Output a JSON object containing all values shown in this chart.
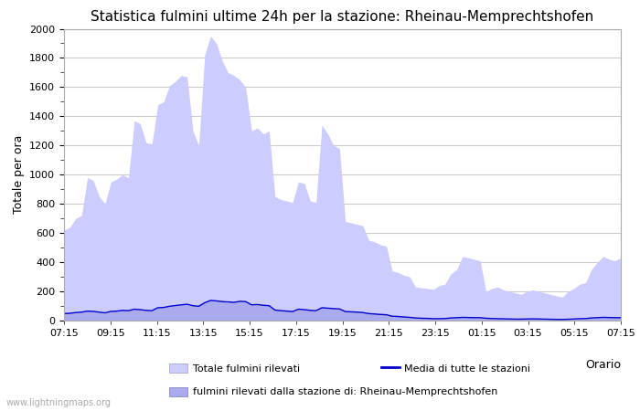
{
  "title": "Statistica fulmini ultime 24h per la stazione: Rheinau-Memprechtshofen",
  "ylabel": "Totale per ora",
  "xlabel": "Orario",
  "watermark": "www.lightningmaps.org",
  "xtick_labels": [
    "07:15",
    "09:15",
    "11:15",
    "13:15",
    "15:15",
    "17:15",
    "19:15",
    "21:15",
    "23:15",
    "01:15",
    "03:15",
    "05:15",
    "07:15"
  ],
  "ylim": [
    0,
    2000
  ],
  "yticks": [
    0,
    200,
    400,
    600,
    800,
    1000,
    1200,
    1400,
    1600,
    1800,
    2000
  ],
  "total_fill_color": "#ccccff",
  "station_fill_color": "#aaaaee",
  "mean_line_color": "#0000cc",
  "background_color": "#ffffff",
  "grid_color": "#cccccc",
  "total_values": [
    620,
    640,
    700,
    720,
    980,
    960,
    850,
    800,
    950,
    970,
    1000,
    980,
    1370,
    1350,
    1220,
    1210,
    1480,
    1500,
    1610,
    1640,
    1680,
    1670,
    1300,
    1200,
    1820,
    1950,
    1900,
    1780,
    1700,
    1680,
    1650,
    1600,
    1300,
    1320,
    1280,
    1300,
    850,
    830,
    820,
    810,
    950,
    940,
    820,
    810,
    1340,
    1280,
    1200,
    1180,
    680,
    670,
    660,
    650,
    550,
    540,
    520,
    510,
    340,
    330,
    310,
    300,
    230,
    225,
    220,
    215,
    240,
    250,
    320,
    350,
    440,
    430,
    420,
    410,
    200,
    220,
    230,
    210,
    200,
    190,
    180,
    200,
    210,
    200,
    190,
    180,
    170,
    160,
    200,
    220,
    250,
    260,
    350,
    400,
    440,
    420,
    410,
    430
  ],
  "station_values": [
    50,
    52,
    58,
    60,
    68,
    65,
    60,
    55,
    65,
    68,
    72,
    70,
    80,
    78,
    72,
    70,
    90,
    92,
    100,
    105,
    110,
    115,
    105,
    100,
    125,
    140,
    138,
    132,
    130,
    128,
    135,
    132,
    110,
    112,
    108,
    105,
    75,
    70,
    68,
    65,
    80,
    78,
    72,
    70,
    90,
    88,
    85,
    82,
    65,
    62,
    60,
    58,
    50,
    48,
    45,
    42,
    32,
    30,
    28,
    25,
    20,
    18,
    17,
    15,
    15,
    16,
    20,
    22,
    25,
    24,
    23,
    22,
    18,
    16,
    15,
    14,
    13,
    12,
    12,
    13,
    14,
    13,
    12,
    11,
    10,
    10,
    11,
    13,
    15,
    16,
    20,
    22,
    25,
    24,
    23,
    22
  ],
  "mean_values": [
    48,
    50,
    55,
    58,
    65,
    63,
    58,
    53,
    63,
    65,
    70,
    68,
    78,
    75,
    70,
    68,
    88,
    90,
    98,
    103,
    108,
    112,
    102,
    98,
    122,
    138,
    135,
    130,
    128,
    125,
    132,
    130,
    108,
    110,
    105,
    102,
    72,
    68,
    65,
    62,
    78,
    75,
    70,
    68,
    88,
    85,
    82,
    80,
    62,
    60,
    58,
    55,
    48,
    45,
    42,
    40,
    30,
    28,
    25,
    22,
    18,
    16,
    15,
    13,
    13,
    14,
    18,
    20,
    22,
    21,
    20,
    20,
    16,
    14,
    13,
    12,
    11,
    10,
    10,
    11,
    12,
    11,
    10,
    9,
    8,
    8,
    9,
    11,
    13,
    14,
    18,
    20,
    22,
    21,
    20,
    20
  ],
  "n_points": 96,
  "legend_items": [
    {
      "label": "Totale fulmini rilevati",
      "color": "#ccccff",
      "type": "fill"
    },
    {
      "label": "Media di tutte le stazioni",
      "color": "#0000cc",
      "type": "line"
    },
    {
      "label": "fulmini rilevati dalla stazione di: Rheinau-Memprechtshofen",
      "color": "#aaaaee",
      "type": "fill"
    }
  ]
}
